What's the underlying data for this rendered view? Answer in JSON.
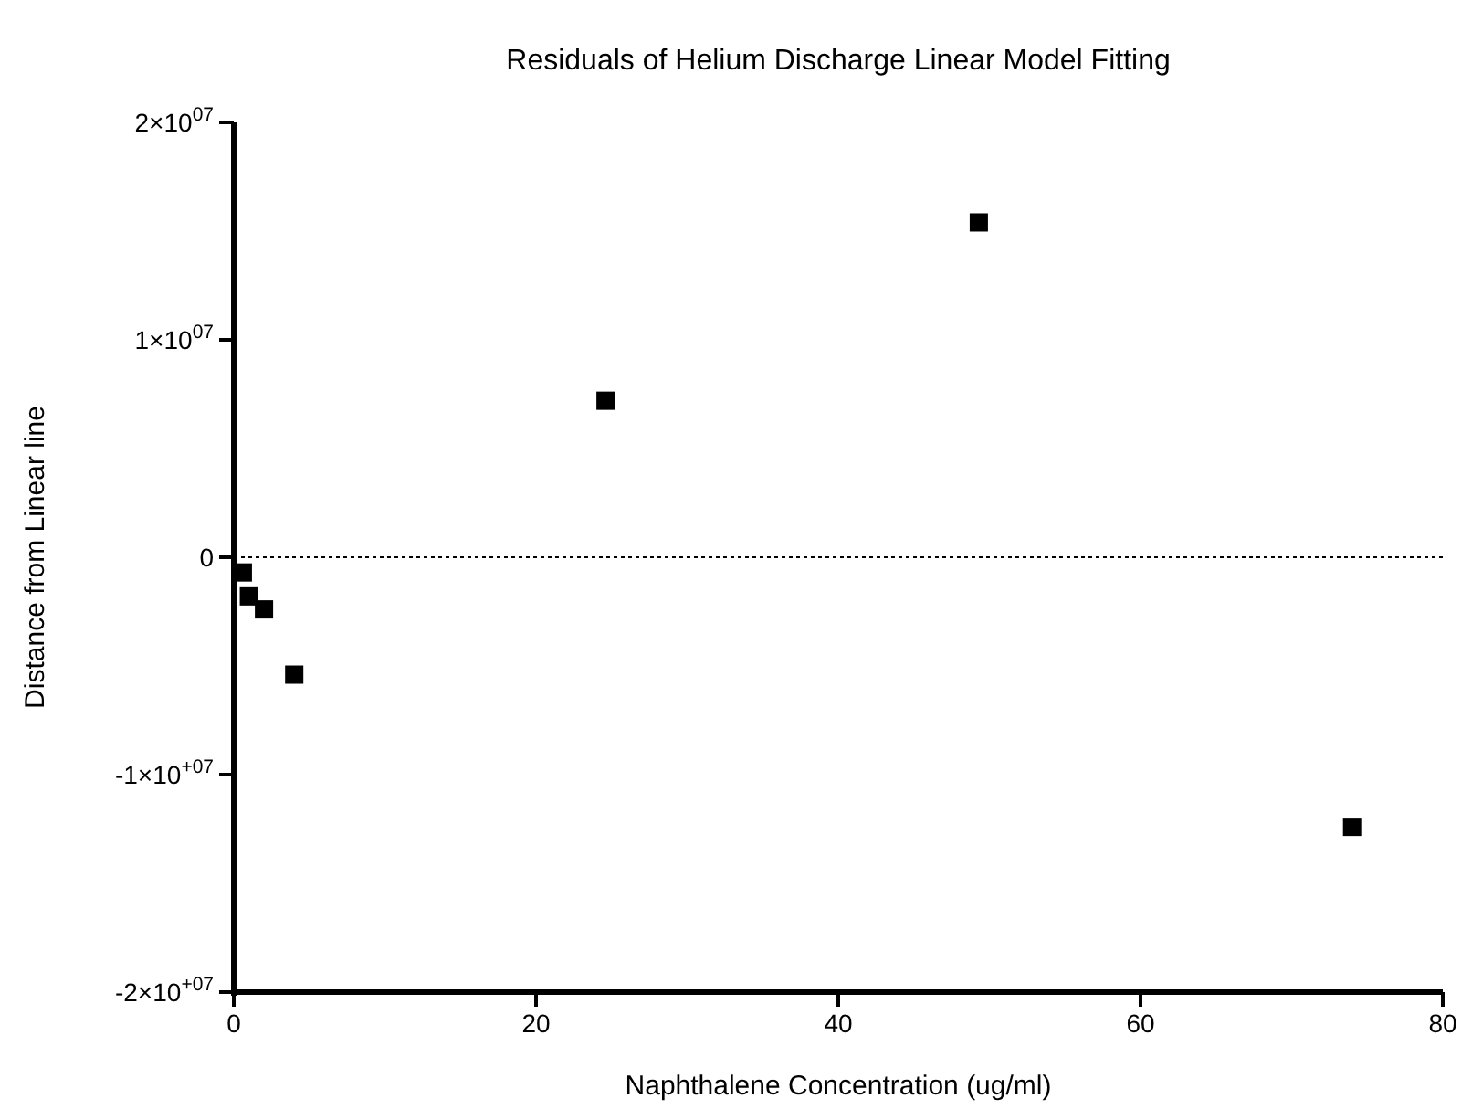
{
  "chart_data": {
    "type": "scatter",
    "title": "Residuals of Helium Discharge Linear Model Fitting",
    "xlabel": "Naphthalene Concentration (ug/ml)",
    "ylabel": "Distance from Linear line",
    "x": [
      0.6,
      1.0,
      2.0,
      4.0,
      24.6,
      49.3,
      74.0
    ],
    "series": [
      {
        "color": "#000000",
        "values": [
          -700000,
          -1800000,
          -2400000,
          -5400000,
          7200000,
          15400000,
          -12400000
        ]
      }
    ],
    "marker": "square",
    "xlim": [
      0,
      80
    ],
    "xticks": [
      0,
      20,
      40,
      60,
      80
    ],
    "ylim": [
      -20000000,
      20000000
    ],
    "yticks": [
      {
        "value": -20000000,
        "label": "-2×10$^{+07}$"
      },
      {
        "value": -10000000,
        "label": "-1×10$^{+07}$"
      },
      {
        "value": 0,
        "label": "0"
      },
      {
        "value": 10000000,
        "label": "1×10$^{07}$"
      },
      {
        "value": 20000000,
        "label": "2×10$^{07}$"
      }
    ],
    "ref_lines": [
      {
        "axis": "y",
        "value": 0,
        "line_style": "dotted",
        "color": "#000000"
      }
    ],
    "grid": false
  }
}
